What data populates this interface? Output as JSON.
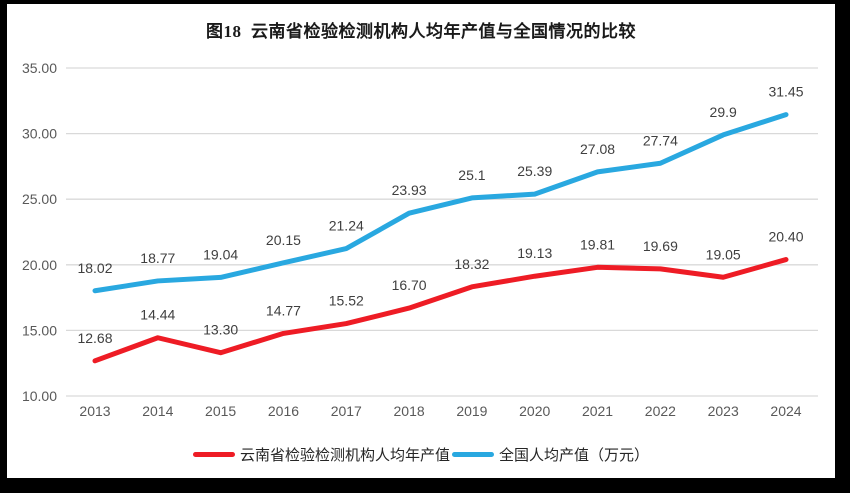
{
  "title": "图18  云南省检验检测机构人均年产值与全国情况的比较",
  "legend": [
    {
      "label": "云南省检验检测机构人均年产值"
    },
    {
      "label": "全国人均产值（万元）"
    }
  ],
  "colors": {
    "yunnan_red": "#EE1C25",
    "national_blue": "#29A8E0",
    "gridline": "#D9D9D9",
    "axis_text": "#595959",
    "data_label": "#3F3F3F",
    "border": "#000000",
    "canvas": "#FFFFFF"
  },
  "chart_data": {
    "type": "line",
    "title": "图18  云南省检验检测机构人均年产值与全国情况的比较",
    "x": [
      "2013",
      "2014",
      "2015",
      "2016",
      "2017",
      "2018",
      "2019",
      "2020",
      "2021",
      "2022",
      "2023",
      "2024"
    ],
    "series": [
      {
        "name": "云南省检验检测机构人均年产值",
        "color": "#EE1C25",
        "values": [
          12.68,
          14.44,
          13.3,
          14.77,
          15.52,
          16.7,
          18.32,
          19.13,
          19.81,
          19.69,
          19.05,
          20.4
        ],
        "labels": [
          "12.68",
          "14.44",
          "13.30",
          "14.77",
          "15.52",
          "16.70",
          "18.32",
          "19.13",
          "19.81",
          "19.69",
          "19.05",
          "20.40"
        ]
      },
      {
        "name": "全国人均产值（万元）",
        "color": "#29A8E0",
        "values": [
          18.02,
          18.77,
          19.04,
          20.15,
          21.24,
          23.93,
          25.1,
          25.39,
          27.08,
          27.74,
          29.9,
          31.45
        ],
        "labels": [
          "18.02",
          "18.77",
          "19.04",
          "20.15",
          "21.24",
          "23.93",
          "25.1",
          "25.39",
          "27.08",
          "27.74",
          "29.9",
          "31.45"
        ]
      }
    ],
    "ylim": [
      10,
      35
    ],
    "yticks": [
      "35.00",
      "30.00",
      "25.00",
      "20.00",
      "15.00",
      "10.00"
    ],
    "xlabel": "",
    "ylabel": "",
    "grid": true,
    "legend_position": "bottom"
  }
}
